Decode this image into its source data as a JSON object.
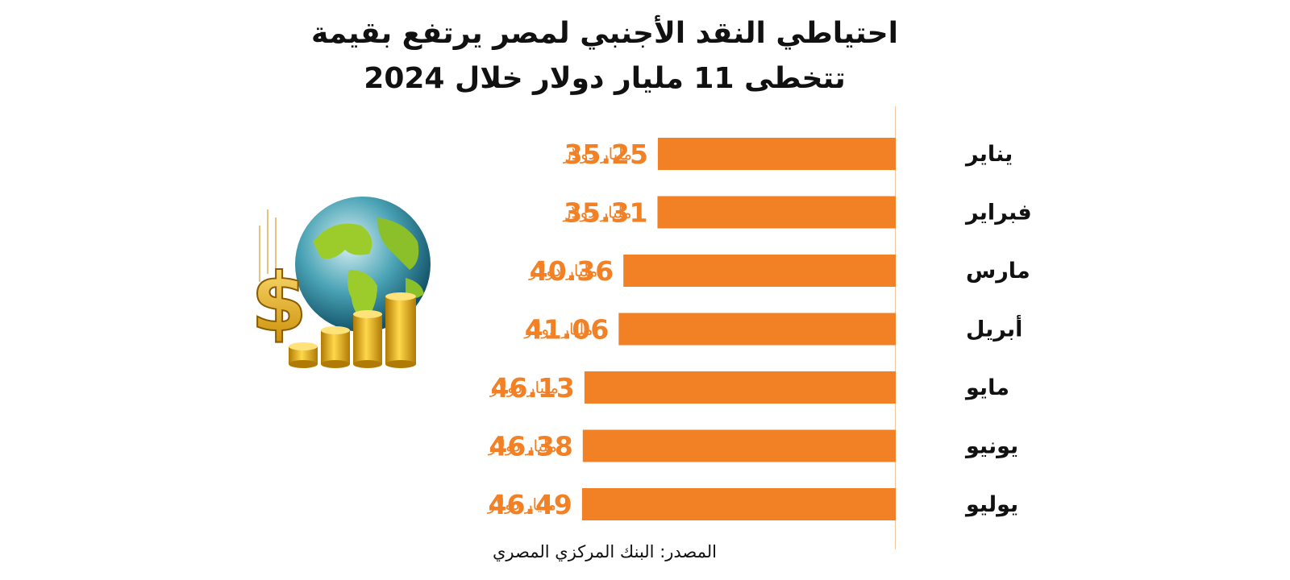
{
  "title": {
    "line1": "احتياطي النقد الأجنبي لمصر يرتفع بقيمة",
    "line2": "تتخطى 11 مليار دولار خلال 2024"
  },
  "source": "المصدر: البنك المركزي المصري",
  "colors": {
    "bar": "#f28024",
    "value_text": "#f28024",
    "title": "#111111"
  },
  "illustration": {
    "icon": "globe-with-dollar-coins-icon"
  },
  "chart_data": {
    "type": "bar",
    "orientation": "horizontal",
    "direction": "right-to-left",
    "title": "احتياطي النقد الأجنبي لمصر يرتفع بقيمة تتخطى 11 مليار دولار خلال 2024",
    "categories": [
      "يناير",
      "فبراير",
      "مارس",
      "أبريل",
      "مايو",
      "يونيو",
      "يوليو"
    ],
    "values": [
      35.25,
      35.31,
      40.36,
      41.06,
      46.13,
      46.38,
      46.49
    ],
    "value_labels": [
      "35.25",
      "35.31",
      "40.36",
      "41.06",
      "46.13",
      "46.38",
      "46.49"
    ],
    "unit": "مليار دولار",
    "grid": false,
    "legend": "none"
  }
}
